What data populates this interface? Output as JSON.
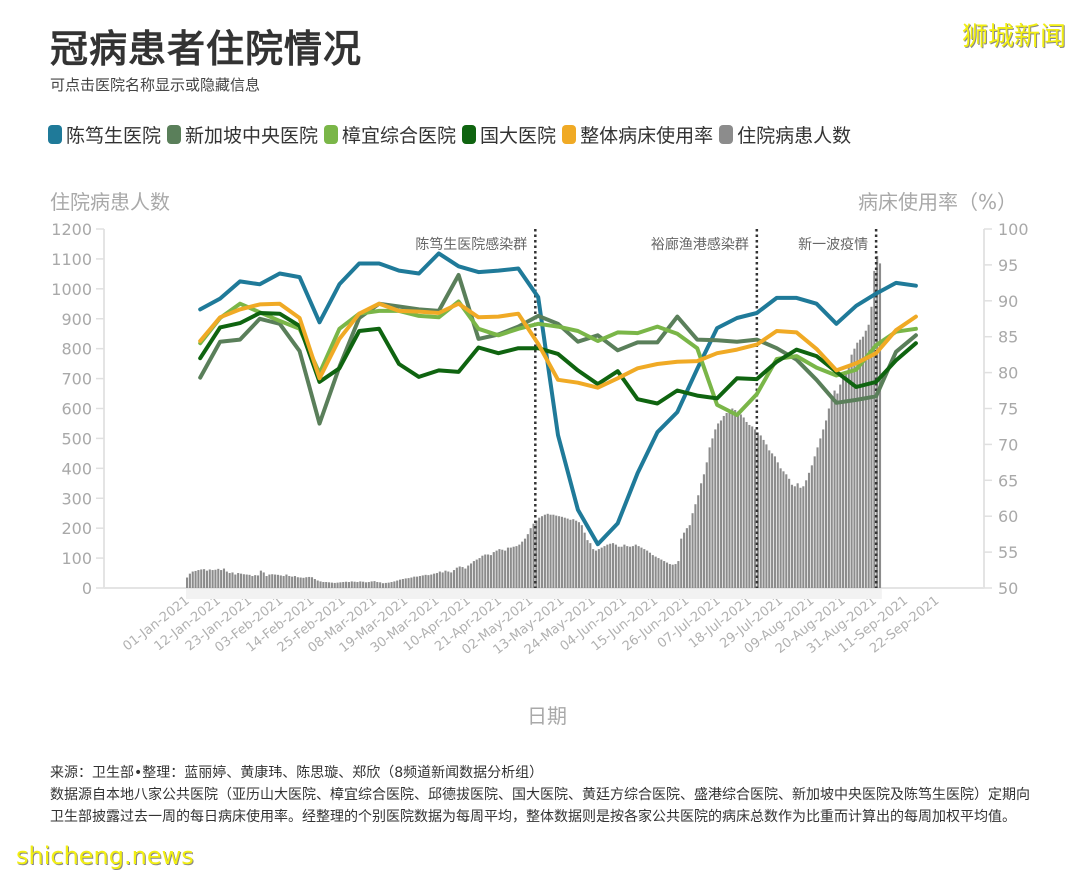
{
  "header": {
    "title": "冠病患者住院情况",
    "subtitle": "可点击医院名称显示或隐藏信息",
    "watermark": "狮城新闻"
  },
  "legend": [
    {
      "label": "陈笃生医院",
      "color": "#1f7a99"
    },
    {
      "label": "新加坡中央医院",
      "color": "#5a7f5a"
    },
    {
      "label": "樟宜综合医院",
      "color": "#7ab648"
    },
    {
      "label": "国大医院",
      "color": "#0f6410"
    },
    {
      "label": "整体病床使用率",
      "color": "#f0aa25"
    },
    {
      "label": "住院病患人数",
      "color": "#8c8c8c"
    }
  ],
  "footer": {
    "line1": "来源：卫生部•整理：蓝丽婷、黄康玮、陈思璇、郑欣（8频道新闻数据分析组）",
    "line2": "数据源自本地八家公共医院（亚历山大医院、樟宜综合医院、邱德拔医院、国大医院、黄廷方综合医院、盛港综合医院、新加坡中央医院及陈笃生医院）定期向卫生部披露过去一周的每日病床使用率。经整理的个别医院数据为每周平均，整体数据则是按各家公共医院的病床总数作为比重而计算出的每周加权平均值。",
    "watermark": "shicheng.news"
  },
  "chart_data": {
    "type": "bar+line",
    "title": "冠病患者住院情况",
    "xlabel": "日期",
    "ylabel_left": "住院病患人数",
    "ylabel_right": "病床使用率（%）",
    "ylim_left": [
      0,
      1200
    ],
    "ylim_right": [
      50,
      100
    ],
    "yticks_left": [
      0,
      100,
      200,
      300,
      400,
      500,
      600,
      700,
      800,
      900,
      1000,
      1100,
      1200
    ],
    "yticks_right": [
      50,
      55,
      60,
      65,
      70,
      75,
      80,
      85,
      90,
      95,
      100
    ],
    "xticks": [
      "01-Jan-2021",
      "12-Jan-2021",
      "23-Jan-2021",
      "03-Feb-2021",
      "14-Feb-2021",
      "25-Feb-2021",
      "08-Mar-2021",
      "19-Mar-2021",
      "30-Mar-2021",
      "10-Apr-2021",
      "21-Apr-2021",
      "02-May-2021",
      "13-May-2021",
      "24-May-2021",
      "04-Jun-2021",
      "15-Jun-2021",
      "26-Jun-2021",
      "07-Jul-2021",
      "18-Jul-2021",
      "29-Jul-2021",
      "09-Aug-2021",
      "20-Aug-2021",
      "31-Aug-2021",
      "11-Sep-2021",
      "22-Sep-2021"
    ],
    "grid": false,
    "legend_position": "top",
    "annotations": [
      {
        "label": "陈笃生医院感染群",
        "x_day": 123
      },
      {
        "label": "裕廊渔港感染群",
        "x_day": 201
      },
      {
        "label": "新一波疫情",
        "x_day": 243
      }
    ],
    "line_week_start_day": 5,
    "line_week_step_days": 7,
    "series_lines": [
      {
        "name": "陈笃生医院",
        "color": "#1f7a99",
        "axis": "right",
        "values": [
          88.8,
          90.3,
          92.7,
          92.3,
          93.8,
          93.3,
          87.0,
          92.3,
          95.2,
          95.2,
          94.2,
          93.8,
          96.6,
          94.8,
          94.0,
          94.2,
          94.5,
          90.5,
          71.3,
          60.9,
          56.1,
          59.0,
          66.0,
          71.7,
          74.5,
          80.5,
          86.2,
          87.6,
          88.3,
          90.4,
          90.4,
          89.6,
          86.8,
          89.3,
          91.0,
          92.5,
          92.1
        ]
      },
      {
        "name": "新加坡中央医院",
        "color": "#5a7f5a",
        "axis": "right",
        "values": [
          79.3,
          84.3,
          84.6,
          87.5,
          86.8,
          83.0,
          72.9,
          80.8,
          87.6,
          89.6,
          89.2,
          88.8,
          88.6,
          93.6,
          84.7,
          85.3,
          86.4,
          87.9,
          86.8,
          84.3,
          85.2,
          83.1,
          84.2,
          84.2,
          87.8,
          84.6,
          84.5,
          84.3,
          84.6,
          83.4,
          81.8,
          79.0,
          75.8,
          76.2,
          76.7,
          82.9,
          85.2
        ]
      },
      {
        "name": "樟宜综合医院",
        "color": "#7ab648",
        "axis": "right",
        "values": [
          84.1,
          87.6,
          89.6,
          88.4,
          87.2,
          86.1,
          79.9,
          86.1,
          88.2,
          88.6,
          88.6,
          87.9,
          87.7,
          89.9,
          86.1,
          85.2,
          86.1,
          86.8,
          86.4,
          85.8,
          84.4,
          85.6,
          85.5,
          86.4,
          85.4,
          83.4,
          75.5,
          74.1,
          77.0,
          81.9,
          82.3,
          80.7,
          79.6,
          80.4,
          83.8,
          85.7,
          86.1
        ]
      },
      {
        "name": "国大医院",
        "color": "#0f6410",
        "axis": "right",
        "values": [
          82.0,
          86.3,
          86.9,
          88.3,
          88.2,
          86.5,
          78.7,
          80.6,
          85.8,
          86.1,
          81.2,
          79.4,
          80.3,
          80.1,
          83.5,
          82.7,
          83.4,
          83.4,
          82.6,
          80.3,
          78.4,
          80.2,
          76.3,
          75.7,
          77.5,
          76.8,
          76.4,
          79.2,
          79.1,
          81.5,
          83.2,
          82.3,
          80.1,
          78.0,
          78.7,
          81.7,
          84.1
        ]
      },
      {
        "name": "整体病床使用率",
        "color": "#f0aa25",
        "axis": "right",
        "values": [
          84.4,
          87.7,
          88.8,
          89.5,
          89.6,
          87.6,
          79.2,
          84.7,
          88.2,
          89.6,
          88.6,
          88.5,
          88.3,
          89.6,
          87.7,
          87.8,
          88.2,
          84.0,
          79.0,
          78.6,
          77.9,
          79.2,
          80.6,
          81.2,
          81.5,
          81.6,
          82.7,
          83.2,
          83.9,
          85.8,
          85.6,
          83.3,
          80.3,
          81.3,
          82.7,
          85.9,
          87.8
        ]
      }
    ],
    "series_bars": {
      "name": "住院病患人数",
      "color": "#8c8c8c",
      "axis": "left",
      "start_day": 0,
      "step_days": 1,
      "values": [
        35,
        48,
        55,
        57,
        60,
        62,
        63,
        58,
        62,
        60,
        61,
        64,
        60,
        65,
        55,
        50,
        52,
        45,
        50,
        48,
        46,
        45,
        44,
        40,
        43,
        42,
        58,
        52,
        40,
        45,
        46,
        45,
        44,
        42,
        40,
        45,
        40,
        38,
        40,
        36,
        35,
        34,
        36,
        37,
        36,
        30,
        25,
        22,
        20,
        20,
        19,
        18,
        17,
        18,
        19,
        20,
        21,
        20,
        22,
        21,
        20,
        22,
        21,
        19,
        20,
        22,
        23,
        20,
        19,
        16,
        17,
        18,
        20,
        22,
        25,
        28,
        30,
        32,
        33,
        35,
        38,
        38,
        40,
        42,
        44,
        43,
        45,
        48,
        50,
        55,
        52,
        58,
        55,
        52,
        60,
        68,
        72,
        70,
        65,
        75,
        82,
        90,
        95,
        100,
        108,
        112,
        112,
        110,
        120,
        125,
        130,
        128,
        125,
        135,
        135,
        138,
        140,
        145,
        155,
        165,
        180,
        200,
        215,
        225,
        235,
        240,
        245,
        248,
        245,
        245,
        242,
        240,
        238,
        235,
        232,
        228,
        230,
        225,
        220,
        210,
        185,
        160,
        150,
        130,
        125,
        130,
        135,
        140,
        145,
        148,
        150,
        145,
        138,
        138,
        145,
        140,
        138,
        140,
        145,
        140,
        135,
        130,
        125,
        118,
        110,
        105,
        100,
        95,
        90,
        85,
        80,
        78,
        80,
        90,
        165,
        185,
        200,
        210,
        250,
        280,
        310,
        350,
        380,
        420,
        470,
        500,
        530,
        550,
        560,
        575,
        585,
        590,
        600,
        595,
        590,
        580,
        570,
        555,
        545,
        540,
        530,
        520,
        510,
        495,
        480,
        460,
        450,
        440,
        420,
        400,
        390,
        380,
        365,
        345,
        340,
        350,
        335,
        340,
        360,
        385,
        410,
        440,
        470,
        500,
        530,
        560,
        600,
        640,
        660,
        650,
        680,
        700,
        720,
        740,
        780,
        800,
        820,
        830,
        840,
        860,
        880,
        940,
        1060,
        1110,
        1085
      ]
    }
  }
}
